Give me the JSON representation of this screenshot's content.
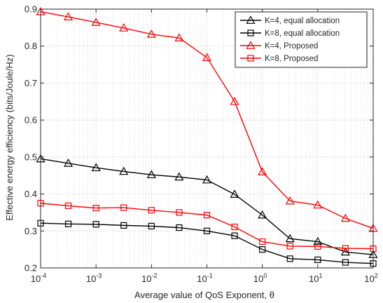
{
  "chart_data": {
    "type": "line",
    "xscale": "log",
    "x": [
      0.0001,
      0.000316,
      0.001,
      0.00316,
      0.01,
      0.0316,
      0.1,
      0.316,
      1,
      3.16,
      10,
      31.6,
      100
    ],
    "xlim": [
      0.0001,
      100
    ],
    "ylim": [
      0.2,
      0.9
    ],
    "xlabel": "Average value of QoS Exponent, θ",
    "ylabel": "Effective energy efficiency (bits/Joule/Hz)",
    "x_ticks": [
      {
        "value": 0.0001,
        "base": "10",
        "exp": "-4"
      },
      {
        "value": 0.001,
        "base": "10",
        "exp": "-3"
      },
      {
        "value": 0.01,
        "base": "10",
        "exp": "-2"
      },
      {
        "value": 0.1,
        "base": "10",
        "exp": "-1"
      },
      {
        "value": 1,
        "base": "10",
        "exp": "0"
      },
      {
        "value": 10,
        "base": "10",
        "exp": "1"
      },
      {
        "value": 100,
        "base": "10",
        "exp": "2"
      }
    ],
    "y_ticks": [
      "0.2",
      "0.3",
      "0.4",
      "0.5",
      "0.6",
      "0.7",
      "0.8",
      "0.9"
    ],
    "grid": true,
    "legend_position": "top-right",
    "series": [
      {
        "name": "K=4, equal allocation",
        "color": "#000000",
        "marker": "triangle",
        "values": [
          0.495,
          0.483,
          0.471,
          0.461,
          0.452,
          0.446,
          0.438,
          0.399,
          0.343,
          0.279,
          0.271,
          0.243,
          0.236
        ]
      },
      {
        "name": "K=8, equal allocation",
        "color": "#000000",
        "marker": "square",
        "values": [
          0.321,
          0.319,
          0.318,
          0.315,
          0.313,
          0.309,
          0.3,
          0.287,
          0.25,
          0.225,
          0.222,
          0.215,
          0.212
        ]
      },
      {
        "name": "K=4, Proposed",
        "color": "#ff0000",
        "marker": "triangle",
        "values": [
          0.893,
          0.879,
          0.864,
          0.849,
          0.832,
          0.822,
          0.769,
          0.65,
          0.46,
          0.381,
          0.37,
          0.334,
          0.307
        ]
      },
      {
        "name": "K=8, Proposed",
        "color": "#ff0000",
        "marker": "square",
        "values": [
          0.375,
          0.368,
          0.362,
          0.363,
          0.356,
          0.35,
          0.343,
          0.311,
          0.271,
          0.259,
          0.258,
          0.253,
          0.252
        ]
      }
    ]
  }
}
